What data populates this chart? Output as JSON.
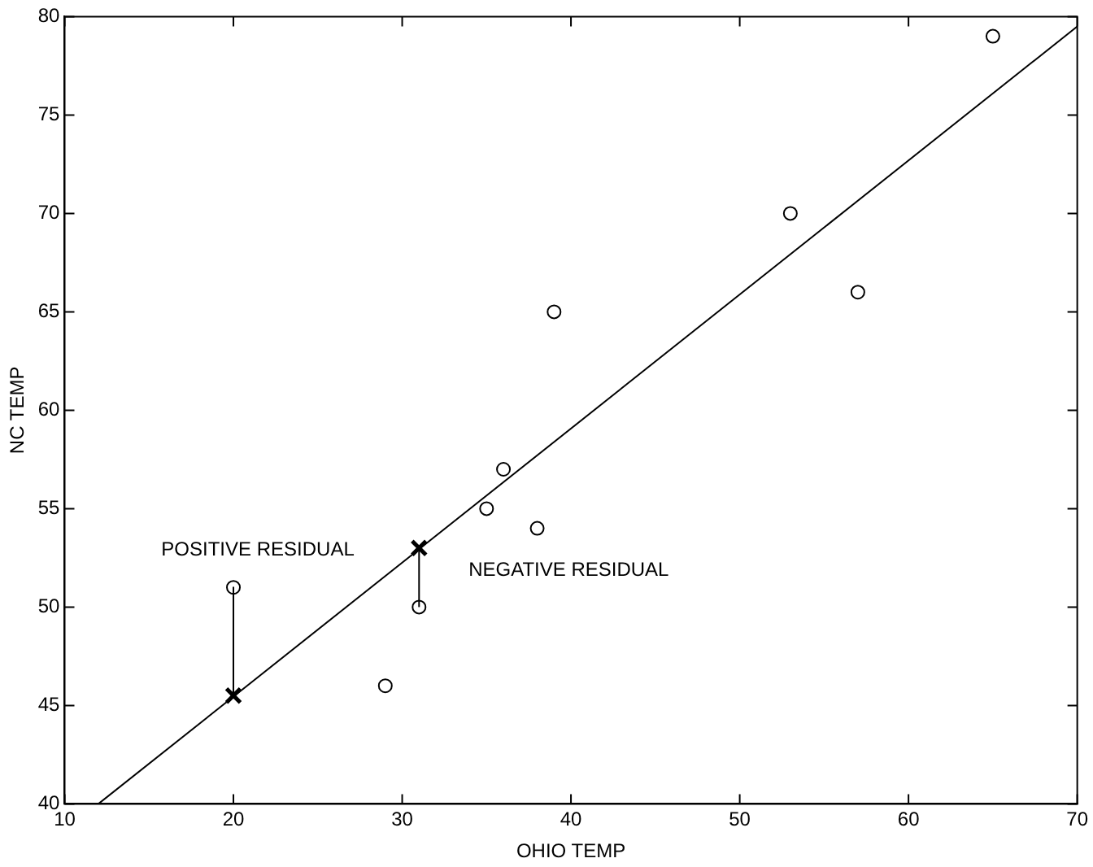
{
  "chart_data": {
    "type": "scatter",
    "xlabel": "OHIO TEMP",
    "ylabel": "NC TEMP",
    "xlim": [
      10,
      70
    ],
    "xticks": [
      10,
      20,
      30,
      40,
      50,
      60,
      70
    ],
    "ylim": [
      40,
      80
    ],
    "yticks": [
      40,
      45,
      50,
      55,
      60,
      65,
      70,
      75,
      80
    ],
    "grid": false,
    "legend": false,
    "series": [
      {
        "type": "scatter",
        "marker": "circle",
        "color": "#000000",
        "x": [
          29,
          35,
          36,
          38,
          39,
          53,
          57,
          65
        ],
        "values": [
          46,
          55,
          57,
          54,
          65,
          70,
          66,
          79
        ]
      },
      {
        "type": "scatter",
        "marker": "circle",
        "color": "#000000",
        "x": [
          20,
          31
        ],
        "values": [
          51,
          50
        ]
      },
      {
        "type": "line",
        "marker": "none",
        "color": "#000000",
        "x": [
          12,
          70
        ],
        "values": [
          40,
          79.5
        ]
      },
      {
        "type": "line",
        "marker": "none",
        "color": "#000000",
        "x": [
          20,
          20
        ],
        "values": [
          51,
          45.5
        ]
      },
      {
        "type": "line",
        "marker": "none",
        "color": "#000000",
        "x": [
          31,
          31
        ],
        "values": [
          50,
          53
        ]
      },
      {
        "type": "scatter",
        "marker": "cross",
        "color": "#000000",
        "x": [
          20,
          31
        ],
        "values": [
          45.5,
          53
        ]
      }
    ],
    "annotations": [
      {
        "text": "POSITIVE RESIDUAL",
        "x": 20,
        "y": 51
      },
      {
        "text": "NEGATIVE RESIDUAL",
        "x": 31,
        "y": 53
      }
    ]
  }
}
